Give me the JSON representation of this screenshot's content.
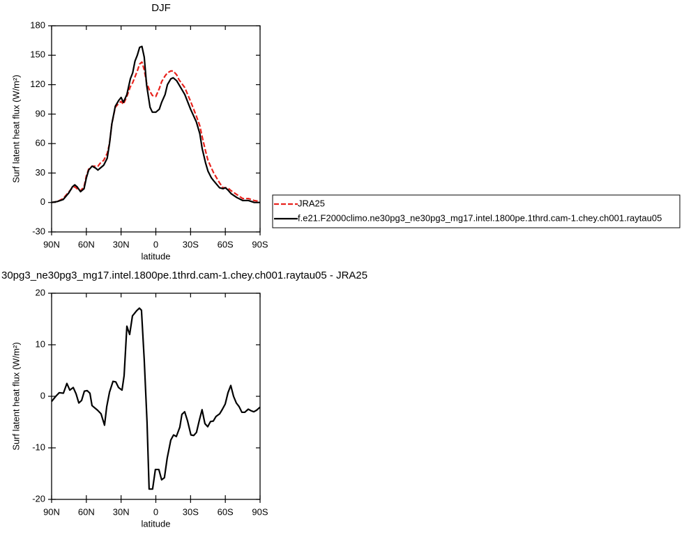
{
  "chart_data": [
    {
      "type": "line",
      "title": "DJF",
      "xlabel": "latitude",
      "ylabel": "Surf latent heat flux (W/m²)",
      "xlim": [
        90,
        -90
      ],
      "ylim": [
        -30,
        180
      ],
      "xticks": [
        {
          "value": 90,
          "label": "90N"
        },
        {
          "value": 60,
          "label": "60N"
        },
        {
          "value": 30,
          "label": "30N"
        },
        0,
        {
          "value": -30,
          "label": "30S"
        },
        {
          "value": -60,
          "label": "60S"
        },
        {
          "value": -90,
          "label": "90S"
        }
      ],
      "yticks": [
        -30,
        0,
        30,
        60,
        90,
        120,
        150,
        180
      ],
      "legend": "outside-right",
      "x": [
        90,
        85,
        80,
        75,
        72,
        70,
        68,
        65,
        62,
        60,
        58,
        55,
        52,
        50,
        48,
        45,
        42,
        40,
        38,
        35,
        32,
        30,
        28,
        25,
        22,
        20,
        18,
        16,
        14,
        12,
        10,
        8,
        5,
        3,
        0,
        -3,
        -5,
        -8,
        -10,
        -13,
        -15,
        -18,
        -20,
        -25,
        -30,
        -35,
        -38,
        -40,
        -43,
        -45,
        -48,
        -50,
        -55,
        -58,
        -60,
        -62,
        -65,
        -70,
        -75,
        -80,
        -85,
        -90
      ],
      "series": [
        {
          "name": "JRA25",
          "color": "#e8221c",
          "dash": true,
          "values": [
            0,
            1,
            4,
            11,
            15,
            16,
            14,
            12,
            16,
            27,
            34,
            37,
            37,
            37,
            40,
            43,
            50,
            60,
            80,
            97,
            101,
            103,
            100,
            108,
            118,
            122,
            128,
            134,
            141,
            143,
            135,
            122,
            113,
            109,
            108,
            116,
            123,
            129,
            132,
            134,
            134,
            130,
            125,
            117,
            103,
            88,
            78,
            67,
            52,
            43,
            35,
            30,
            20,
            15,
            15,
            15,
            12,
            8,
            4,
            4,
            2,
            1
          ]
        },
        {
          "name": "f.e21.F2000climo.ne30pg3_ne30pg3_mg17.intel.1800pe.1thrd.cam-1.chey.ch001.raytau05",
          "color": "#000000",
          "dash": false,
          "values": [
            0,
            1,
            3,
            10,
            16,
            18,
            16,
            11,
            14,
            25,
            33,
            37,
            35,
            33,
            35,
            38,
            45,
            60,
            80,
            98,
            104,
            107,
            102,
            110,
            126,
            132,
            144,
            150,
            158,
            159,
            148,
            120,
            97,
            92,
            92,
            95,
            102,
            110,
            120,
            126,
            127,
            124,
            120,
            110,
            95,
            82,
            70,
            55,
            40,
            32,
            25,
            22,
            15,
            14,
            15,
            13,
            9,
            5,
            2,
            2,
            0,
            0
          ]
        }
      ]
    },
    {
      "type": "line",
      "title": "30pg3_ne30pg3_mg17.intel.1800pe.1thrd.cam-1.chey.ch001.raytau05 - JRA25",
      "xlabel": "latitude",
      "ylabel": "Surf latent heat flux (W/m²)",
      "xlim": [
        90,
        -90
      ],
      "ylim": [
        -20,
        20
      ],
      "xticks": [
        {
          "value": 90,
          "label": "90N"
        },
        {
          "value": 60,
          "label": "60N"
        },
        {
          "value": 30,
          "label": "30N"
        },
        0,
        {
          "value": -30,
          "label": "30S"
        },
        {
          "value": -60,
          "label": "60S"
        },
        {
          "value": -90,
          "label": "90S"
        }
      ],
      "yticks": [
        -20,
        -10,
        0,
        10,
        20
      ],
      "x": [
        90,
        86.4,
        83.4,
        79.8,
        76.8,
        74.3,
        71.3,
        68.9,
        66.5,
        64.1,
        61.7,
        59.3,
        56.9,
        55.1,
        50.3,
        47.3,
        44.3,
        42.4,
        40.0,
        37.0,
        34.6,
        32.2,
        29.2,
        27.4,
        25.0,
        22.6,
        20.2,
        16.6,
        14.2,
        12.4,
        10.0,
        7.6,
        5.8,
        2.8,
        0.4,
        -2.6,
        -5.0,
        -7.4,
        -9.8,
        -12.9,
        -15.3,
        -17.7,
        -20.7,
        -22.5,
        -24.9,
        -27.3,
        -30.3,
        -32.7,
        -35.1,
        -37.5,
        -39.9,
        -42.4,
        -44.8,
        -47.2,
        -49.6,
        -52.0,
        -55.1,
        -57.5,
        -59.9,
        -62.3,
        -64.7,
        -67.1,
        -69.5,
        -71.9,
        -74.3,
        -76.8,
        -79.8,
        -82.2,
        -84.6,
        -87.0,
        -90
      ],
      "series": [
        {
          "color": "#000000",
          "dash": false,
          "values": [
            -1.0,
            0,
            0.7,
            0.6,
            2.5,
            1.2,
            1.7,
            0.5,
            -1.3,
            -0.8,
            1.0,
            1.1,
            0.6,
            -1.8,
            -2.7,
            -3.4,
            -5.6,
            -2,
            0.8,
            2.9,
            2.8,
            1.7,
            1.2,
            4,
            13.6,
            12,
            15.6,
            16.6,
            17.1,
            16.7,
            7,
            -5,
            -18,
            -18,
            -14.2,
            -14.2,
            -16.2,
            -15.8,
            -12,
            -8.5,
            -7.5,
            -7.8,
            -6,
            -3.5,
            -3,
            -4.7,
            -7.5,
            -7.6,
            -7,
            -4.7,
            -2.6,
            -5.3,
            -5.9,
            -4.9,
            -4.8,
            -3.9,
            -3.4,
            -2.5,
            -1.5,
            0.7,
            2.1,
            0,
            -1.3,
            -2,
            -3.1,
            -3.1,
            -2.5,
            -2.8,
            -3.0,
            -2.7,
            -2.1
          ]
        }
      ]
    }
  ]
}
